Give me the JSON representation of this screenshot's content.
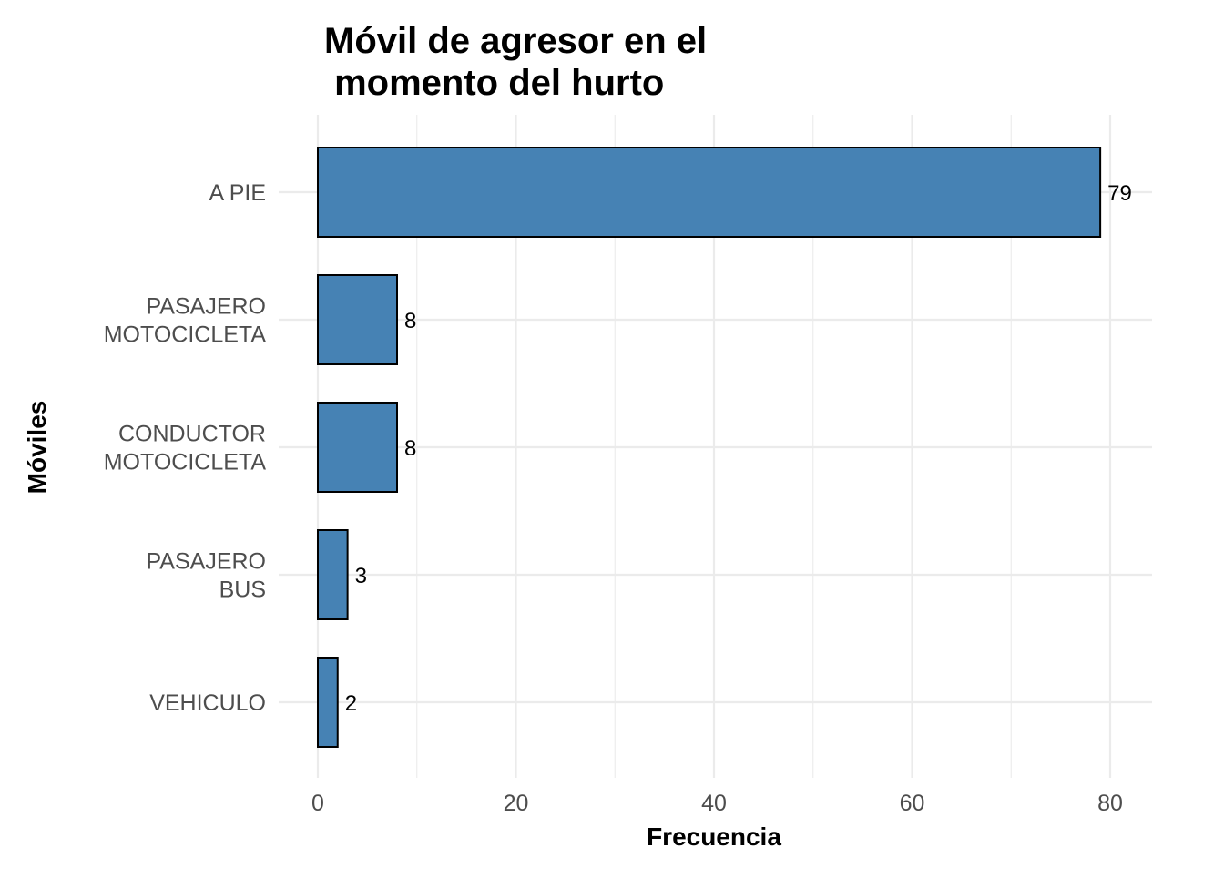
{
  "chart_data": {
    "type": "bar",
    "orientation": "horizontal",
    "title": [
      "Móvil de agresor en el",
      " momento del hurto"
    ],
    "xlabel": "Frecuencia",
    "ylabel": "Móviles",
    "categories": [
      [
        "A PIE"
      ],
      [
        "PASAJERO",
        "MOTOCICLETA"
      ],
      [
        "CONDUCTOR",
        "MOTOCICLETA"
      ],
      [
        "PASAJERO",
        "BUS"
      ],
      [
        "VEHICULO"
      ]
    ],
    "values": [
      79,
      8,
      8,
      3,
      2
    ],
    "xlim": [
      0,
      84
    ],
    "xticks": [
      0,
      20,
      40,
      60,
      80
    ],
    "xtick_labels": [
      "0",
      "20",
      "40",
      "60",
      "80"
    ],
    "grid": true,
    "bar_color": "#4682b4",
    "bar_border_color": "#000000",
    "grid_color": "#ebebeb"
  }
}
